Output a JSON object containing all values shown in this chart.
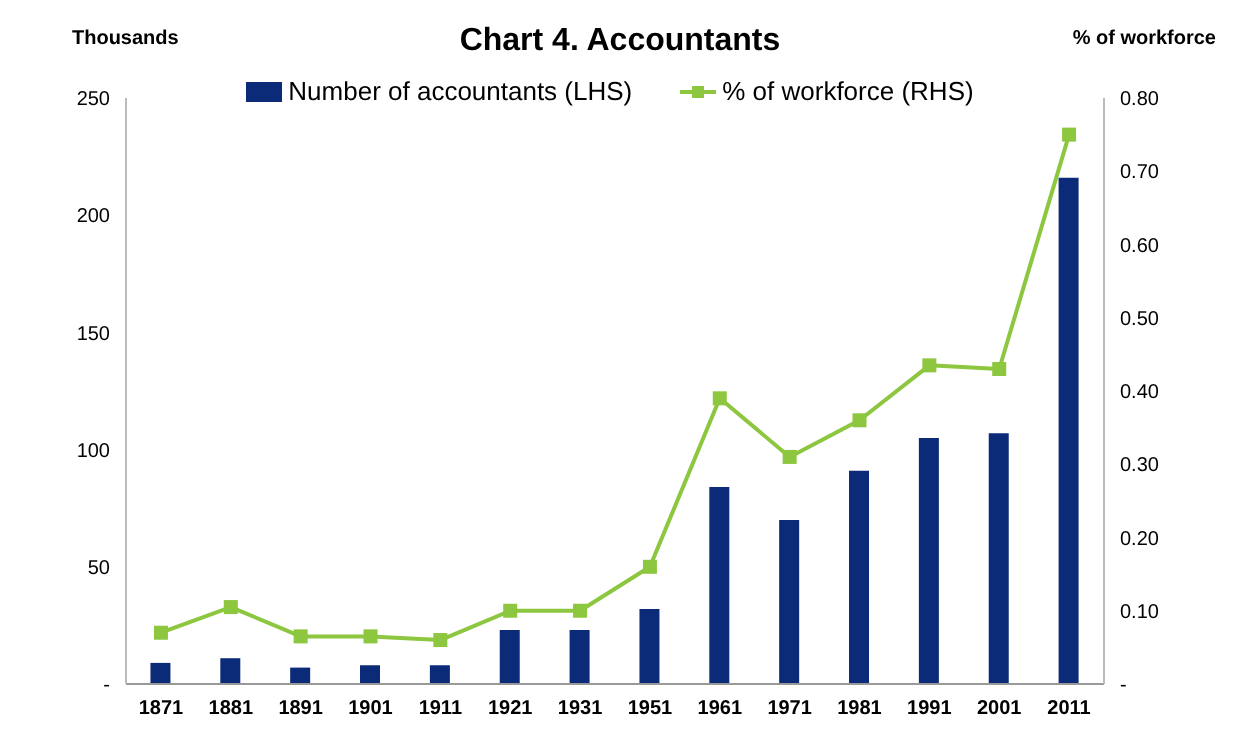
{
  "chart_data": {
    "type": "bar",
    "title": "Chart 4. Accountants",
    "ylabel": "Thousands",
    "y2label": "% of workforce",
    "categories": [
      "1871",
      "1881",
      "1891",
      "1901",
      "1911",
      "1921",
      "1931",
      "1951",
      "1961",
      "1971",
      "1981",
      "1991",
      "2001",
      "2011"
    ],
    "series": [
      {
        "name": "Number of accountants (LHS)",
        "color": "#0b2a78",
        "values": [
          9,
          11,
          7,
          8,
          8,
          23,
          23,
          32,
          84,
          70,
          91,
          105,
          107,
          216
        ]
      },
      {
        "name": "% of workforce (RHS)",
        "type": "line",
        "axis": "y2",
        "color": "#8dc63f",
        "values": [
          0.07,
          0.105,
          0.065,
          0.065,
          0.06,
          0.1,
          0.1,
          0.16,
          0.39,
          0.31,
          0.36,
          0.435,
          0.43,
          0.75
        ]
      }
    ],
    "ylim": [
      0,
      250
    ],
    "yticks": [
      {
        "value": 0,
        "label": "-"
      },
      50,
      100,
      150,
      200,
      250
    ],
    "y2lim": [
      0,
      0.8
    ],
    "y2ticks": [
      {
        "value": 0,
        "label": "-"
      },
      {
        "value": 0.1,
        "label": "0.10"
      },
      {
        "value": 0.2,
        "label": "0.20"
      },
      {
        "value": 0.3,
        "label": "0.30"
      },
      {
        "value": 0.4,
        "label": "0.40"
      },
      {
        "value": 0.5,
        "label": "0.50"
      },
      {
        "value": 0.6,
        "label": "0.60"
      },
      {
        "value": 0.7,
        "label": "0.70"
      },
      {
        "value": 0.8,
        "label": "0.80"
      }
    ],
    "legend": "top",
    "grid": false,
    "marker": "square"
  }
}
